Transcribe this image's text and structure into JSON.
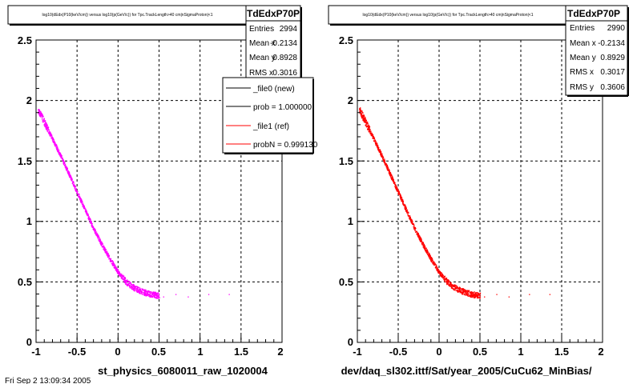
{
  "chart_data": [
    {
      "type": "scatter",
      "title": "log10(dEdx(P10(keV/cm)) versus log10(p(GeV/c)) for Tpc.TrackLength>40 cm|nSigmaProton|<1",
      "xlabel": "st_physics_6080011_raw_1020004",
      "ylabel": "",
      "xlim": [
        -1,
        2
      ],
      "ylim": [
        0,
        2.5
      ],
      "x_ticks": [
        "-1",
        "-0.5",
        "0",
        "0.5",
        "1",
        "1.5",
        "2"
      ],
      "y_ticks": [
        "0",
        "0.5",
        "1",
        "1.5",
        "2",
        "2.5"
      ],
      "grid": true,
      "marker_color": "#ff00ff",
      "band": {
        "x": [
          -0.98,
          -0.9,
          -0.8,
          -0.7,
          -0.6,
          -0.5,
          -0.4,
          -0.3,
          -0.2,
          -0.1,
          0.0,
          0.1,
          0.2,
          0.3,
          0.4,
          0.5
        ],
        "y": [
          1.93,
          1.82,
          1.68,
          1.54,
          1.39,
          1.24,
          1.09,
          0.94,
          0.81,
          0.69,
          0.58,
          0.5,
          0.45,
          0.42,
          0.4,
          0.39
        ]
      },
      "stats": {
        "name": "TdEdxP70P",
        "rows": [
          {
            "label": "Entries",
            "value": "2994"
          },
          {
            "label": "Mean x",
            "value": "-0.2134"
          },
          {
            "label": "Mean y",
            "value": "0.8928"
          },
          {
            "label": "RMS x",
            "value": "0.3016"
          }
        ]
      },
      "legend": [
        {
          "label": "_file0 (new)",
          "color": "#000000"
        },
        {
          "label": "prob = 1.000000",
          "color": "#000000"
        },
        {
          "label": "_file1 (ref)",
          "color": "#ff0000"
        },
        {
          "label": "probN = 0.999130",
          "color": "#ff0000"
        }
      ]
    },
    {
      "type": "scatter",
      "title": "log10(dEdx(P10(keV/cm)) versus log10(p(GeV/c)) for Tpc.TrackLength>40 cm|nSigmaProton|<1",
      "xlabel": "dev/daq_sl302.ittf/Sat/year_2005/CuCu62_MinBias/",
      "ylabel": "",
      "xlim": [
        -1,
        2
      ],
      "ylim": [
        0,
        2.5
      ],
      "x_ticks": [
        "-1",
        "-0.5",
        "0",
        "0.5",
        "1",
        "1.5",
        "2"
      ],
      "y_ticks": [
        "0",
        "0.5",
        "1",
        "1.5",
        "2",
        "2.5"
      ],
      "grid": true,
      "marker_color": "#ff0000",
      "band": {
        "x": [
          -0.98,
          -0.9,
          -0.8,
          -0.7,
          -0.6,
          -0.5,
          -0.4,
          -0.3,
          -0.2,
          -0.1,
          0.0,
          0.1,
          0.2,
          0.3,
          0.4,
          0.5
        ],
        "y": [
          1.93,
          1.82,
          1.68,
          1.54,
          1.39,
          1.24,
          1.09,
          0.94,
          0.81,
          0.69,
          0.58,
          0.5,
          0.45,
          0.42,
          0.4,
          0.39
        ]
      },
      "stats": {
        "name": "TdEdxP70P",
        "rows": [
          {
            "label": "Entries",
            "value": "2990"
          },
          {
            "label": "Mean x",
            "value": "-0.2134"
          },
          {
            "label": "Mean y",
            "value": "0.8929"
          },
          {
            "label": "RMS x",
            "value": "0.3017"
          },
          {
            "label": "RMS y",
            "value": "0.3606"
          }
        ]
      }
    }
  ],
  "footer": {
    "date": "Fri Sep  2 13:09:34 2005"
  }
}
